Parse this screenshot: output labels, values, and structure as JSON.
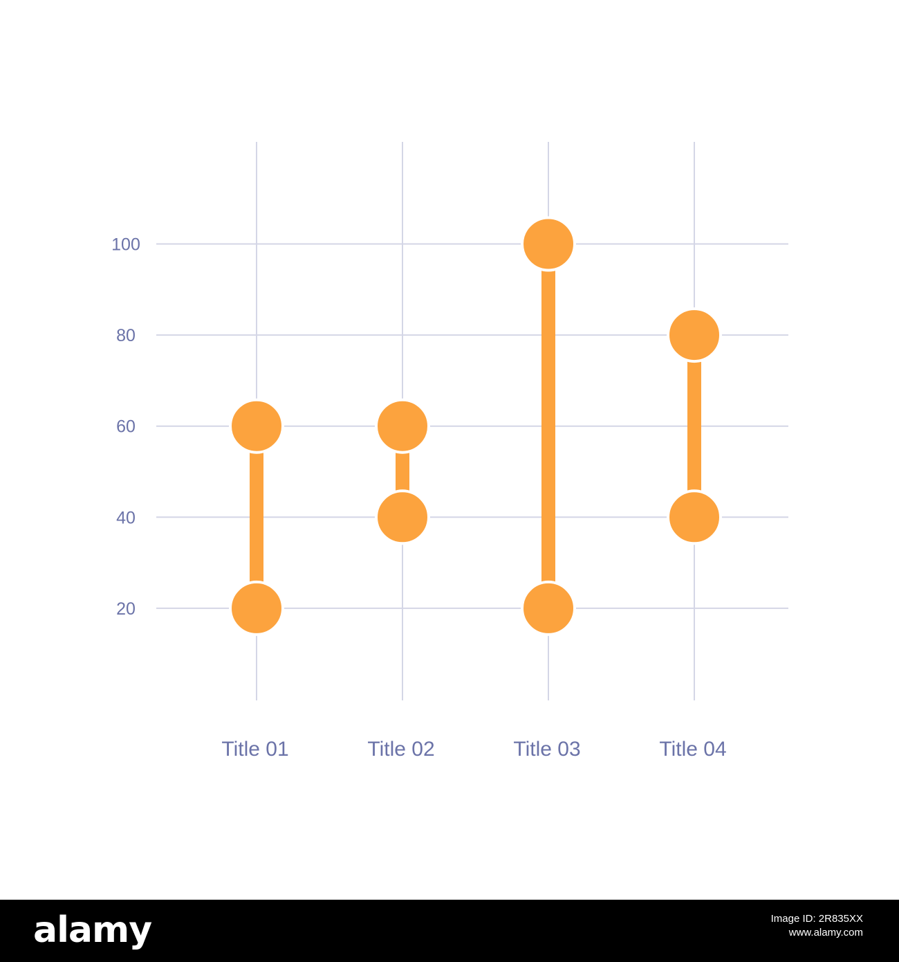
{
  "chart_data": {
    "type": "range",
    "title": "",
    "xlabel": "",
    "ylabel": "",
    "categories": [
      "Title 01",
      "Title 02",
      "Title 03",
      "Title 04"
    ],
    "series": [
      {
        "low": [
          20,
          40,
          20,
          40
        ],
        "high": [
          60,
          60,
          100,
          80
        ]
      }
    ],
    "yticks": [
      "20",
      "40",
      "60",
      "80",
      "100"
    ],
    "ylim": [
      0,
      120
    ],
    "grid": true,
    "legend": "none",
    "colors": {
      "marker": "#FCA33E",
      "stem": "#FCA33E",
      "grid": "#D4D6E6",
      "axis_label": "#6B73A8"
    }
  },
  "footer": {
    "logo": "alamy",
    "image_id": "Image ID: 2R835XX",
    "site": "www.alamy.com"
  }
}
